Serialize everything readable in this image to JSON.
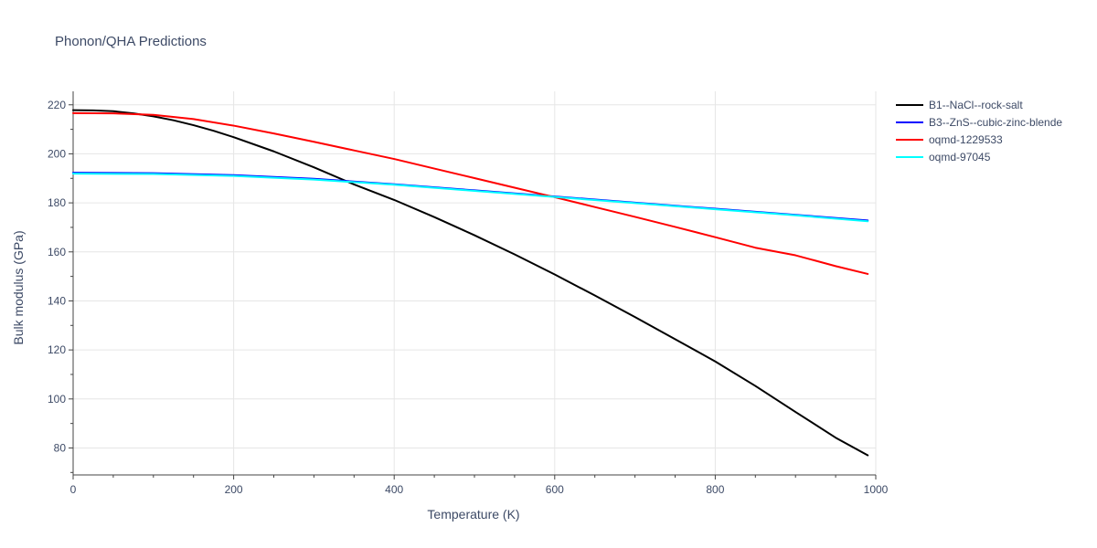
{
  "chart_data": {
    "type": "line",
    "title": "Phonon/QHA Predictions",
    "xlabel": "Temperature (K)",
    "ylabel": "Bulk modulus (GPa)",
    "xlim": [
      0,
      1000
    ],
    "ylim": [
      69,
      225.5
    ],
    "x_ticks": [
      0,
      200,
      400,
      600,
      800,
      1000
    ],
    "x_tick_labels": [
      "0",
      "200",
      "400",
      "600",
      "800",
      "1000"
    ],
    "x_minor_ticks": [
      50,
      100,
      150,
      250,
      300,
      350,
      450,
      500,
      550,
      650,
      700,
      750,
      850,
      900,
      950
    ],
    "y_ticks": [
      80,
      100,
      120,
      140,
      160,
      180,
      200,
      220
    ],
    "y_tick_labels": [
      "80",
      "100",
      "120",
      "140",
      "160",
      "180",
      "200",
      "220"
    ],
    "y_minor_ticks": [
      70,
      90,
      110,
      130,
      150,
      170,
      190,
      210
    ],
    "grid": true,
    "legend_position": "top-right",
    "series": [
      {
        "name": "B1--NaCl--rock-salt",
        "color": "#000000",
        "x": [
          0,
          25,
          50,
          75,
          100,
          125,
          150,
          175,
          200,
          250,
          300,
          350,
          400,
          450,
          500,
          550,
          600,
          650,
          700,
          750,
          800,
          850,
          900,
          950,
          990
        ],
        "y": [
          217.8,
          217.7,
          217.4,
          216.5,
          215.3,
          213.7,
          211.7,
          209.4,
          206.8,
          201.0,
          194.5,
          187.5,
          181.2,
          174.2,
          166.8,
          159.0,
          150.8,
          142.2,
          133.4,
          124.4,
          115.3,
          105.3,
          94.7,
          84.2,
          77.0
        ]
      },
      {
        "name": "B3--ZnS--cubic-zinc-blende",
        "color": "#0000ff",
        "x": [
          0,
          100,
          200,
          300,
          400,
          500,
          600,
          700,
          800,
          900,
          990
        ],
        "y": [
          192.3,
          192.1,
          191.3,
          189.8,
          187.6,
          185.1,
          182.6,
          180.1,
          177.6,
          175.1,
          172.8
        ]
      },
      {
        "name": "oqmd-1229533",
        "color": "#ff0000",
        "x": [
          0,
          50,
          100,
          150,
          200,
          250,
          300,
          350,
          400,
          450,
          500,
          550,
          600,
          650,
          700,
          750,
          800,
          850,
          900,
          950,
          990
        ],
        "y": [
          216.6,
          216.5,
          215.9,
          214.2,
          211.5,
          208.3,
          204.9,
          201.4,
          197.9,
          194.0,
          190.1,
          186.2,
          182.3,
          178.3,
          174.3,
          170.2,
          166.0,
          161.7,
          158.6,
          154.2,
          151.0
        ]
      },
      {
        "name": "oqmd-97045",
        "color": "#00ffff",
        "x": [
          0,
          100,
          200,
          300,
          400,
          500,
          600,
          700,
          800,
          900,
          990
        ],
        "y": [
          191.9,
          191.8,
          191.0,
          189.5,
          187.4,
          184.9,
          182.4,
          179.9,
          177.4,
          174.9,
          172.5
        ]
      }
    ]
  }
}
